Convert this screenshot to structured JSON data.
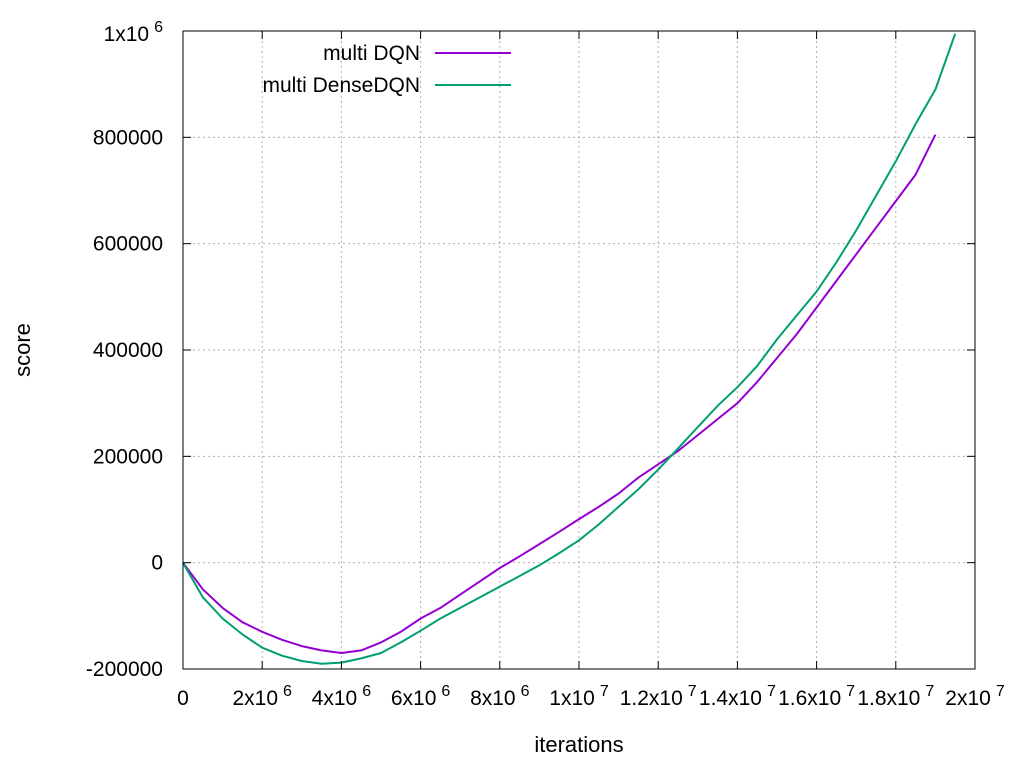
{
  "chart_data": {
    "type": "line",
    "title": "",
    "xlabel": "iterations",
    "ylabel": "score",
    "xlim": [
      0,
      20000000
    ],
    "ylim": [
      -200000,
      1000000
    ],
    "grid": true,
    "legend_position": "top-left",
    "x_ticks": [
      {
        "value": 0,
        "label": "0"
      },
      {
        "value": 2000000,
        "label": "2x10",
        "exp": "6"
      },
      {
        "value": 4000000,
        "label": "4x10",
        "exp": "6"
      },
      {
        "value": 6000000,
        "label": "6x10",
        "exp": "6"
      },
      {
        "value": 8000000,
        "label": "8x10",
        "exp": "6"
      },
      {
        "value": 10000000,
        "label": "1x10",
        "exp": "7"
      },
      {
        "value": 12000000,
        "label": "1.2x10",
        "exp": "7"
      },
      {
        "value": 14000000,
        "label": "1.4x10",
        "exp": "7"
      },
      {
        "value": 16000000,
        "label": "1.6x10",
        "exp": "7"
      },
      {
        "value": 18000000,
        "label": "1.8x10",
        "exp": "7"
      },
      {
        "value": 20000000,
        "label": "2x10",
        "exp": "7"
      }
    ],
    "y_ticks": [
      {
        "value": -200000,
        "label": "-200000"
      },
      {
        "value": 0,
        "label": "0"
      },
      {
        "value": 200000,
        "label": "200000"
      },
      {
        "value": 400000,
        "label": "400000"
      },
      {
        "value": 600000,
        "label": "600000"
      },
      {
        "value": 800000,
        "label": "800000"
      },
      {
        "value": 1000000,
        "label": "1x10",
        "exp": "6"
      }
    ],
    "series": [
      {
        "name": "multi DQN",
        "color": "#9400d3",
        "x": [
          0,
          500000,
          1000000,
          1500000,
          2000000,
          2500000,
          3000000,
          3500000,
          4000000,
          4500000,
          5000000,
          5500000,
          6000000,
          6500000,
          7000000,
          7500000,
          8000000,
          8500000,
          9000000,
          9500000,
          10000000,
          10500000,
          11000000,
          11500000,
          12000000,
          12500000,
          13000000,
          13500000,
          14000000,
          14500000,
          15000000,
          15500000,
          16000000,
          16500000,
          17000000,
          17500000,
          18000000,
          18500000,
          19000000
        ],
        "y": [
          0,
          -50000,
          -85000,
          -112000,
          -130000,
          -145000,
          -157000,
          -165000,
          -170000,
          -165000,
          -150000,
          -130000,
          -105000,
          -85000,
          -60000,
          -35000,
          -10000,
          12000,
          35000,
          58000,
          82000,
          105000,
          130000,
          160000,
          185000,
          210000,
          240000,
          270000,
          300000,
          340000,
          385000,
          430000,
          480000,
          530000,
          580000,
          630000,
          680000,
          730000,
          805000
        ]
      },
      {
        "name": "multi DenseDQN",
        "color": "#009e73",
        "x": [
          0,
          500000,
          1000000,
          1500000,
          2000000,
          2500000,
          3000000,
          3500000,
          4000000,
          4500000,
          5000000,
          5500000,
          6000000,
          6500000,
          7000000,
          7500000,
          8000000,
          8500000,
          9000000,
          9500000,
          10000000,
          10500000,
          11000000,
          11500000,
          12000000,
          12500000,
          13000000,
          13500000,
          14000000,
          14500000,
          15000000,
          15500000,
          16000000,
          16500000,
          17000000,
          17500000,
          18000000,
          18500000,
          19000000,
          19500000
        ],
        "y": [
          0,
          -65000,
          -105000,
          -135000,
          -160000,
          -175000,
          -185000,
          -190000,
          -188000,
          -180000,
          -170000,
          -150000,
          -128000,
          -105000,
          -85000,
          -65000,
          -45000,
          -25000,
          -5000,
          18000,
          42000,
          72000,
          105000,
          138000,
          175000,
          215000,
          255000,
          295000,
          330000,
          370000,
          420000,
          465000,
          510000,
          565000,
          625000,
          690000,
          755000,
          825000,
          890000,
          995000
        ]
      }
    ]
  }
}
